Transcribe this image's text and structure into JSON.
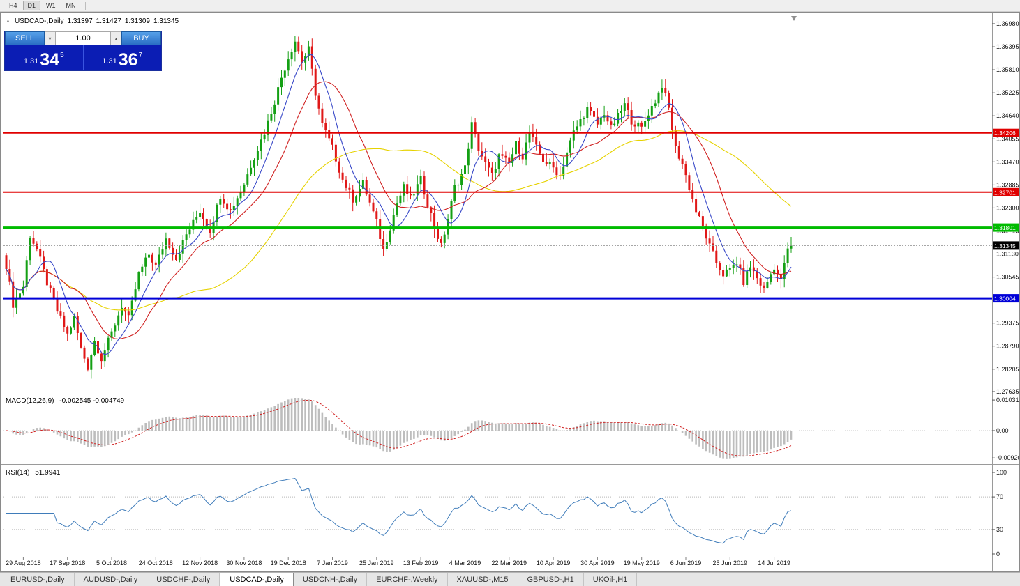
{
  "toolbar": {
    "timeframes": [
      "H4",
      "D1",
      "W1",
      "MN"
    ],
    "active_timeframe": "D1"
  },
  "icons": {
    "collapse": "▲",
    "spin_up": "▴",
    "spin_down": "▾"
  },
  "chart": {
    "symbol": "USDCAD-,Daily",
    "open": "1.31397",
    "high": "1.31427",
    "low": "1.31309",
    "close": "1.31345"
  },
  "trade_panel": {
    "sell_label": "SELL",
    "buy_label": "BUY",
    "volume": "1.00",
    "sell_price": {
      "small": "1.31",
      "big": "34",
      "sup": "5"
    },
    "buy_price": {
      "small": "1.31",
      "big": "36",
      "sup": "7"
    }
  },
  "price_scale": {
    "labels": [
      "1.36980",
      "1.36395",
      "1.35810",
      "1.35225",
      "1.34640",
      "1.34055",
      "1.33470",
      "1.32885",
      "1.32300",
      "1.31715",
      "1.31130",
      "1.30545",
      "1.29960",
      "1.29375",
      "1.28790",
      "1.28205",
      "1.27635"
    ]
  },
  "indicators": {
    "macd": {
      "name_label": "MACD(12,26,9)",
      "values_label": "-0.002545 -0.004749",
      "scale_labels": [
        "0.010311",
        "0.00",
        "-0.009203"
      ]
    },
    "rsi": {
      "name_label": "RSI(14)",
      "value_label": "51.9941",
      "scale_labels": [
        "100",
        "70",
        "30",
        "0"
      ]
    }
  },
  "dates": [
    "29 Aug 2018",
    "17 Sep 2018",
    "5 Oct 2018",
    "24 Oct 2018",
    "12 Nov 2018",
    "30 Nov 2018",
    "19 Dec 2018",
    "7 Jan 2019",
    "25 Jan 2019",
    "13 Feb 2019",
    "4 Mar 2019",
    "22 Mar 2019",
    "10 Apr 2019",
    "30 Apr 2019",
    "19 May 2019",
    "6 Jun 2019",
    "25 Jun 2019",
    "14 Jul 2019"
  ],
  "tabs": {
    "active_index": 3,
    "items": [
      "EURUSD-,Daily",
      "AUDUSD-,Daily",
      "USDCHF-,Daily",
      "USDCAD-,Daily",
      "USDCNH-,Daily",
      "EURCHF-,Weekly",
      "XAUUSD-,M15",
      "GBPUSD-,H1",
      "UKOil-,H1"
    ]
  },
  "chart_data": {
    "type": "candlestick",
    "symbol": "USDCAD-",
    "timeframe": "Daily",
    "bars": 232,
    "y_axis": {
      "min": 1.27635,
      "max": 1.3698,
      "tick_step": 0.00585
    },
    "x_axis": {
      "first_tick_bar": 5,
      "bars_per_tick": 13
    },
    "current_price": 1.31345,
    "ohlc_current": {
      "open": 1.31397,
      "high": 1.31427,
      "low": 1.31309,
      "close": 1.31345
    },
    "price_anchors": [
      [
        0,
        1.3085
      ],
      [
        2,
        1.2985
      ],
      [
        5,
        1.303
      ],
      [
        7,
        1.316
      ],
      [
        9,
        1.3125
      ],
      [
        12,
        1.304
      ],
      [
        15,
        1.2968
      ],
      [
        18,
        1.2908
      ],
      [
        20,
        1.295
      ],
      [
        22,
        1.2872
      ],
      [
        24,
        1.2826
      ],
      [
        26,
        1.2892
      ],
      [
        28,
        1.2848
      ],
      [
        31,
        1.2912
      ],
      [
        34,
        1.2982
      ],
      [
        36,
        1.2948
      ],
      [
        39,
        1.3062
      ],
      [
        42,
        1.3112
      ],
      [
        44,
        1.3082
      ],
      [
        47,
        1.3152
      ],
      [
        50,
        1.3102
      ],
      [
        53,
        1.3162
      ],
      [
        57,
        1.3222
      ],
      [
        60,
        1.3172
      ],
      [
        63,
        1.3262
      ],
      [
        66,
        1.3222
      ],
      [
        70,
        1.3292
      ],
      [
        73,
        1.3362
      ],
      [
        76,
        1.3422
      ],
      [
        79,
        1.3502
      ],
      [
        81,
        1.3562
      ],
      [
        83,
        1.3612
      ],
      [
        85,
        1.3655
      ],
      [
        87,
        1.3602
      ],
      [
        89,
        1.3632
      ],
      [
        91,
        1.3522
      ],
      [
        93,
        1.3442
      ],
      [
        96,
        1.3382
      ],
      [
        99,
        1.3302
      ],
      [
        102,
        1.3252
      ],
      [
        105,
        1.3292
      ],
      [
        107,
        1.3242
      ],
      [
        109,
        1.3192
      ],
      [
        111,
        1.3122
      ],
      [
        113,
        1.3182
      ],
      [
        115,
        1.3242
      ],
      [
        117,
        1.3282
      ],
      [
        119,
        1.3252
      ],
      [
        122,
        1.3302
      ],
      [
        124,
        1.3242
      ],
      [
        126,
        1.3182
      ],
      [
        128,
        1.3132
      ],
      [
        130,
        1.3202
      ],
      [
        132,
        1.3282
      ],
      [
        135,
        1.3332
      ],
      [
        137,
        1.3442
      ],
      [
        139,
        1.3382
      ],
      [
        141,
        1.3342
      ],
      [
        143,
        1.3312
      ],
      [
        145,
        1.3362
      ],
      [
        148,
        1.3342
      ],
      [
        150,
        1.3392
      ],
      [
        152,
        1.3362
      ],
      [
        154,
        1.3422
      ],
      [
        156,
        1.3382
      ],
      [
        158,
        1.3352
      ],
      [
        161,
        1.3332
      ],
      [
        163,
        1.3312
      ],
      [
        165,
        1.3372
      ],
      [
        167,
        1.3422
      ],
      [
        169,
        1.3452
      ],
      [
        171,
        1.3482
      ],
      [
        174,
        1.3442
      ],
      [
        176,
        1.3472
      ],
      [
        178,
        1.3432
      ],
      [
        180,
        1.3462
      ],
      [
        182,
        1.3492
      ],
      [
        184,
        1.3452
      ],
      [
        187,
        1.3432
      ],
      [
        189,
        1.3472
      ],
      [
        191,
        1.3502
      ],
      [
        193,
        1.3542
      ],
      [
        195,
        1.3482
      ],
      [
        197,
        1.3382
      ],
      [
        199,
        1.3342
      ],
      [
        201,
        1.3282
      ],
      [
        203,
        1.3222
      ],
      [
        205,
        1.3182
      ],
      [
        207,
        1.3132
      ],
      [
        209,
        1.3092
      ],
      [
        211,
        1.3062
      ],
      [
        213,
        1.3072
      ],
      [
        215,
        1.3092
      ],
      [
        217,
        1.3042
      ],
      [
        219,
        1.3082
      ],
      [
        221,
        1.3052
      ],
      [
        223,
        1.3022
      ],
      [
        225,
        1.3062
      ],
      [
        226,
        1.3082
      ],
      [
        228,
        1.3042
      ],
      [
        229,
        1.3092
      ],
      [
        230,
        1.312
      ],
      [
        231,
        1.31345
      ]
    ],
    "levels": [
      {
        "price": 1.34206,
        "color": "#e00000",
        "width": 2
      },
      {
        "price": 1.32701,
        "color": "#e00000",
        "width": 2
      },
      {
        "price": 1.31801,
        "color": "#00bb00",
        "width": 3
      },
      {
        "price": 1.30004,
        "color": "#0000d8",
        "width": 3
      }
    ],
    "moving_averages": [
      {
        "period": 8,
        "color": "#3848c8"
      },
      {
        "period": 18,
        "color": "#d02020"
      },
      {
        "period": 50,
        "color": "#e6d200"
      }
    ],
    "macd": {
      "fast": 12,
      "slow": 26,
      "signal": 9,
      "current": -0.002545,
      "current_signal": -0.004749,
      "scale": [
        0.010311,
        0,
        -0.009203
      ]
    },
    "rsi": {
      "period": 14,
      "current": 51.9941,
      "levels": [
        70,
        30
      ],
      "scale": [
        100,
        70,
        30,
        0
      ]
    },
    "colors": {
      "up": "#14a014",
      "down": "#e01818",
      "macd_hist": "#bdbdbd",
      "macd_signal": "#d02020",
      "rsi_line": "#3f7cba",
      "current_line": "#9a9a9a",
      "tag_current_bg": "#000000"
    }
  }
}
